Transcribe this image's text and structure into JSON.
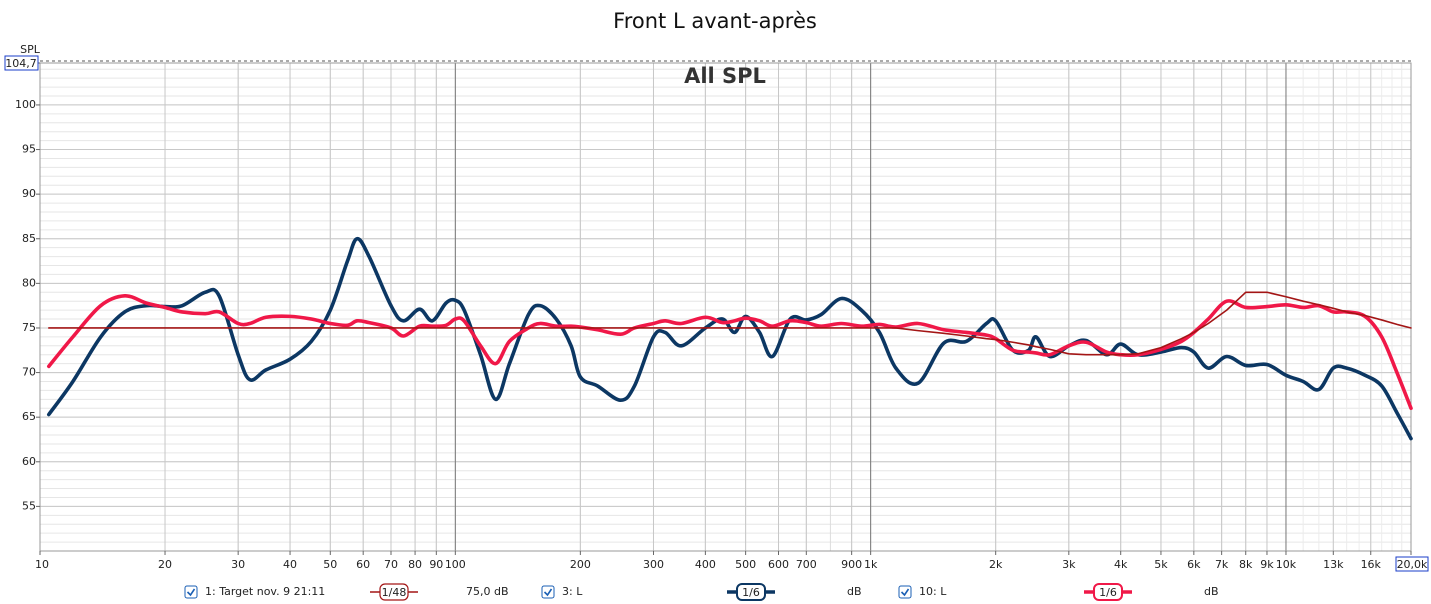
{
  "chart_data": {
    "type": "line",
    "title": "Front L avant-après",
    "annotation": "All SPL",
    "y_label": "SPL",
    "log_x": true,
    "grid": true,
    "minor_grid": true,
    "xlim": [
      10,
      20000
    ],
    "ylim": [
      50,
      104.7
    ],
    "xticks": [
      10,
      20,
      30,
      40,
      50,
      60,
      70,
      80,
      90,
      100,
      200,
      300,
      400,
      500,
      600,
      700,
      900,
      {
        "value": 1000,
        "label": "1k"
      },
      {
        "value": 2000,
        "label": "2k"
      },
      {
        "value": 3000,
        "label": "3k"
      },
      {
        "value": 4000,
        "label": "4k"
      },
      {
        "value": 5000,
        "label": "5k"
      },
      {
        "value": 6000,
        "label": "6k"
      },
      {
        "value": 7000,
        "label": "7k"
      },
      {
        "value": 8000,
        "label": "8k"
      },
      {
        "value": 9000,
        "label": "9k"
      },
      {
        "value": 10000,
        "label": "10k"
      },
      {
        "value": 13000,
        "label": "13k"
      },
      {
        "value": 16000,
        "label": "16k"
      },
      {
        "value": 20000,
        "label": "20,0k"
      }
    ],
    "yticks": [
      55,
      60,
      65,
      70,
      75,
      80,
      85,
      90,
      95,
      100,
      {
        "value": 104.7,
        "label": "104,7"
      }
    ],
    "x": [
      10.5,
      12,
      14,
      16,
      18,
      20,
      22,
      25,
      27,
      30,
      32,
      35,
      40,
      45,
      50,
      55,
      58,
      62,
      70,
      75,
      82,
      88,
      95,
      100,
      105,
      115,
      125,
      135,
      150,
      160,
      175,
      190,
      200,
      220,
      250,
      270,
      300,
      320,
      350,
      400,
      440,
      470,
      500,
      540,
      580,
      640,
      700,
      760,
      850,
      950,
      1050,
      1150,
      1300,
      1500,
      1700,
      1900,
      2000,
      2200,
      2400,
      2500,
      2700,
      3000,
      3300,
      3700,
      4000,
      4400,
      5000,
      5600,
      6000,
      6500,
      7200,
      8000,
      9000,
      10000,
      11000,
      12000,
      13000,
      14000,
      15500,
      17000,
      18500,
      20000
    ],
    "series": [
      {
        "name": "1: Target nov. 9 21:11",
        "color": "#a31515",
        "smoothing": "1/48",
        "level": "75,0 dB",
        "values": [
          75,
          75,
          75,
          75,
          75,
          75,
          75,
          75,
          75,
          75,
          75,
          75,
          75,
          75,
          75,
          75,
          75,
          75,
          75,
          75,
          75,
          75,
          75,
          75,
          75,
          75,
          75,
          75,
          75,
          75,
          75,
          75,
          75,
          75,
          75,
          75,
          75,
          75,
          75,
          75,
          75,
          75,
          75,
          75,
          75,
          75,
          75,
          75,
          75,
          75,
          75,
          75,
          74.7,
          74.4,
          74.1,
          73.8,
          73.7,
          73.4,
          73.1,
          72.9,
          72.6,
          72.1,
          72,
          72,
          72,
          72.1,
          72.8,
          73.8,
          74.5,
          75.5,
          77,
          79,
          79,
          78.5,
          78,
          77.6,
          77.2,
          76.8,
          76.4,
          75.9,
          75.4,
          75
        ]
      },
      {
        "name": "3: L",
        "color": "#0c3763",
        "smoothing": "1/6",
        "level": "dB",
        "values": [
          65.3,
          69,
          74,
          76.8,
          77.5,
          77.4,
          77.5,
          79,
          78.6,
          72,
          69.2,
          70.3,
          71.5,
          73.5,
          77,
          82.5,
          85,
          83,
          77.5,
          75.8,
          77.1,
          75.8,
          77.8,
          78.1,
          77,
          72,
          67,
          71,
          76.5,
          77.5,
          76,
          73,
          69.5,
          68.5,
          66.9,
          68.5,
          74,
          74.5,
          73,
          75,
          76,
          74.5,
          76.3,
          74.5,
          71.8,
          76,
          75.9,
          76.5,
          78.3,
          77,
          74.5,
          70.5,
          68.8,
          73.3,
          73.5,
          75.5,
          75.8,
          72.5,
          72.5,
          74,
          71.8,
          73,
          73.6,
          72,
          73.2,
          72,
          72.3,
          72.8,
          72.3,
          70.5,
          71.8,
          70.8,
          70.9,
          69.7,
          69,
          68.1,
          70.5,
          70.5,
          69.7,
          68.5,
          65.5,
          62.6
        ]
      },
      {
        "name": "10: L",
        "color": "#f01848",
        "smoothing": "1/6",
        "level": "dB",
        "values": [
          70.7,
          74,
          77.5,
          78.6,
          77.8,
          77.3,
          76.8,
          76.6,
          76.8,
          75.5,
          75.5,
          76.2,
          76.3,
          76,
          75.5,
          75.3,
          75.8,
          75.6,
          75,
          74.1,
          75.2,
          75.2,
          75.3,
          76,
          75.8,
          73,
          71,
          73.5,
          75,
          75.5,
          75.2,
          75.2,
          75.1,
          74.8,
          74.3,
          75,
          75.5,
          75.8,
          75.5,
          76.2,
          75.6,
          75.8,
          76.1,
          75.8,
          75.2,
          75.8,
          75.6,
          75.2,
          75.5,
          75.2,
          75.4,
          75.1,
          75.5,
          74.8,
          74.5,
          74.2,
          73.8,
          72.5,
          72.3,
          72.2,
          72,
          73,
          73.4,
          72.3,
          72,
          72,
          72.6,
          73.5,
          74.5,
          76,
          78,
          77.3,
          77.4,
          77.6,
          77.3,
          77.5,
          76.8,
          76.8,
          76.3,
          74,
          70,
          66
        ]
      }
    ]
  }
}
